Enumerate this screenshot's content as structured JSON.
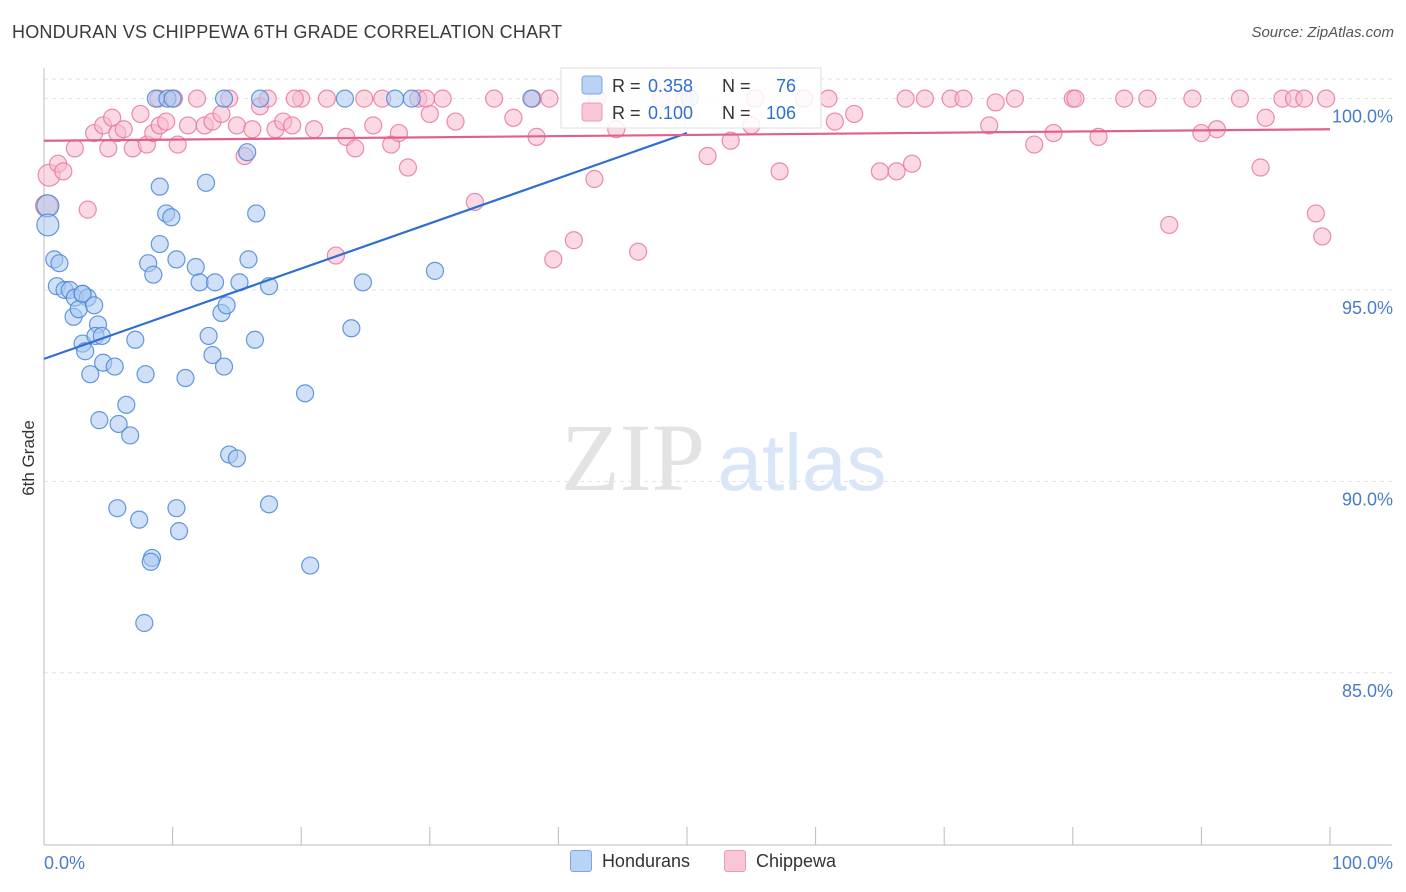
{
  "title": "HONDURAN VS CHIPPEWA 6TH GRADE CORRELATION CHART",
  "source": "Source: ZipAtlas.com",
  "watermark": {
    "zip": "ZIP",
    "atlas": "atlas"
  },
  "colors": {
    "blue": "#4a86d8",
    "blue_fill": "#a9c8f0",
    "blue_line": "#2f6fd0",
    "pink": "#e9789e",
    "pink_fill": "#f7b9cd",
    "pink_line": "#e0608c",
    "axis_label": "#4a7cc9"
  },
  "stats": [
    {
      "r_label": "R =",
      "r_value": "0.358",
      "n_label": "N =",
      "n_value": "76"
    },
    {
      "r_label": "R =",
      "r_value": "0.100",
      "n_label": "N =",
      "n_value": "106"
    }
  ],
  "legend": [
    {
      "label": "Hondurans"
    },
    {
      "label": "Chippewa"
    }
  ],
  "chart_data": {
    "type": "scatter",
    "title": "HONDURAN VS CHIPPEWA 6TH GRADE CORRELATION CHART",
    "xlabel": "",
    "ylabel": "6th Grade",
    "xlim": [
      0,
      100
    ],
    "ylim": [
      80.5,
      100.8
    ],
    "x_tick_labels": [
      "0.0%",
      "100.0%"
    ],
    "y_ticks": [
      85,
      90,
      95,
      100
    ],
    "y_tick_labels": [
      "85.0%",
      "90.0%",
      "95.0%",
      "100.0%"
    ],
    "grid": true,
    "legend_position": "bottom",
    "series": [
      {
        "name": "Hondurans",
        "r": 0.358,
        "n": 76,
        "trend": [
          [
            0,
            93.2
          ],
          [
            50,
            99.1
          ]
        ],
        "points": [
          [
            0.3,
            97.2
          ],
          [
            0.3,
            96.7
          ],
          [
            0.8,
            95.8
          ],
          [
            1.2,
            95.7
          ],
          [
            1.0,
            95.1
          ],
          [
            1.6,
            95.0
          ],
          [
            2.0,
            95.0
          ],
          [
            2.4,
            94.8
          ],
          [
            3.0,
            94.9
          ],
          [
            3.4,
            94.8
          ],
          [
            2.3,
            94.3
          ],
          [
            2.7,
            94.5
          ],
          [
            3.0,
            94.9
          ],
          [
            3.9,
            94.6
          ],
          [
            4.2,
            94.1
          ],
          [
            3.0,
            93.6
          ],
          [
            4.0,
            93.8
          ],
          [
            4.5,
            93.8
          ],
          [
            3.2,
            93.4
          ],
          [
            4.6,
            93.1
          ],
          [
            5.5,
            93.0
          ],
          [
            3.6,
            92.8
          ],
          [
            7.1,
            93.7
          ],
          [
            7.9,
            92.8
          ],
          [
            6.4,
            92.0
          ],
          [
            4.3,
            91.6
          ],
          [
            5.8,
            91.5
          ],
          [
            6.7,
            91.2
          ],
          [
            5.7,
            89.3
          ],
          [
            7.4,
            89.0
          ],
          [
            8.4,
            88.0
          ],
          [
            8.3,
            87.9
          ],
          [
            7.8,
            86.3
          ],
          [
            10.3,
            89.3
          ],
          [
            10.5,
            88.7
          ],
          [
            11.0,
            92.7
          ],
          [
            8.1,
            95.7
          ],
          [
            8.5,
            95.4
          ],
          [
            9.0,
            96.2
          ],
          [
            9.0,
            97.7
          ],
          [
            9.5,
            97.0
          ],
          [
            9.9,
            96.9
          ],
          [
            10.3,
            95.8
          ],
          [
            11.8,
            95.6
          ],
          [
            12.1,
            95.2
          ],
          [
            12.8,
            93.8
          ],
          [
            13.1,
            93.3
          ],
          [
            13.3,
            95.2
          ],
          [
            13.8,
            94.4
          ],
          [
            14.2,
            94.6
          ],
          [
            14.0,
            93.0
          ],
          [
            14.4,
            90.7
          ],
          [
            15.0,
            90.6
          ],
          [
            15.2,
            95.2
          ],
          [
            15.9,
            95.8
          ],
          [
            16.5,
            97.0
          ],
          [
            16.4,
            93.7
          ],
          [
            17.5,
            95.1
          ],
          [
            17.5,
            89.4
          ],
          [
            15.8,
            98.6
          ],
          [
            20.7,
            87.8
          ],
          [
            20.3,
            92.3
          ],
          [
            23.9,
            94.0
          ],
          [
            24.8,
            95.2
          ],
          [
            30.4,
            95.5
          ],
          [
            12.6,
            97.8
          ],
          [
            8.7,
            100.0
          ],
          [
            9.6,
            100.0
          ],
          [
            10.0,
            100.0
          ],
          [
            14.0,
            100.0
          ],
          [
            16.8,
            100.0
          ],
          [
            23.4,
            100.0
          ],
          [
            27.3,
            100.0
          ],
          [
            28.6,
            100.0
          ],
          [
            37.9,
            100.0
          ],
          [
            50.2,
            100.0
          ]
        ]
      },
      {
        "name": "Chippewa",
        "r": 0.1,
        "n": 106,
        "trend": [
          [
            0,
            98.9
          ],
          [
            100,
            99.2
          ]
        ],
        "points": [
          [
            0.2,
            97.2
          ],
          [
            0.4,
            98.0
          ],
          [
            1.1,
            98.3
          ],
          [
            1.5,
            98.1
          ],
          [
            2.4,
            98.7
          ],
          [
            3.4,
            97.1
          ],
          [
            3.9,
            99.1
          ],
          [
            4.6,
            99.3
          ],
          [
            5.0,
            98.7
          ],
          [
            5.3,
            99.5
          ],
          [
            5.7,
            99.1
          ],
          [
            6.2,
            99.2
          ],
          [
            6.9,
            98.7
          ],
          [
            7.5,
            99.6
          ],
          [
            8.0,
            98.8
          ],
          [
            8.5,
            99.1
          ],
          [
            9.0,
            99.3
          ],
          [
            9.5,
            99.4
          ],
          [
            10.1,
            100.0
          ],
          [
            10.4,
            98.8
          ],
          [
            11.2,
            99.3
          ],
          [
            11.9,
            100.0
          ],
          [
            12.5,
            99.3
          ],
          [
            13.1,
            99.4
          ],
          [
            13.8,
            99.6
          ],
          [
            14.4,
            100.0
          ],
          [
            15.0,
            99.3
          ],
          [
            15.6,
            98.5
          ],
          [
            16.2,
            99.2
          ],
          [
            16.8,
            99.8
          ],
          [
            17.4,
            100.0
          ],
          [
            18.0,
            99.2
          ],
          [
            18.6,
            99.4
          ],
          [
            19.3,
            99.3
          ],
          [
            20.0,
            100.0
          ],
          [
            21.0,
            99.2
          ],
          [
            22.0,
            100.0
          ],
          [
            22.7,
            95.9
          ],
          [
            23.5,
            99.0
          ],
          [
            24.2,
            98.7
          ],
          [
            24.9,
            100.0
          ],
          [
            25.6,
            99.3
          ],
          [
            26.3,
            100.0
          ],
          [
            27.0,
            98.8
          ],
          [
            27.6,
            99.1
          ],
          [
            28.3,
            98.2
          ],
          [
            29.1,
            100.0
          ],
          [
            30.0,
            99.6
          ],
          [
            31.0,
            100.0
          ],
          [
            32.0,
            99.4
          ],
          [
            33.5,
            97.3
          ],
          [
            35.0,
            100.0
          ],
          [
            36.5,
            99.5
          ],
          [
            38.0,
            100.0
          ],
          [
            39.6,
            95.8
          ],
          [
            41.2,
            96.3
          ],
          [
            42.8,
            97.9
          ],
          [
            44.5,
            99.2
          ],
          [
            46.2,
            96.0
          ],
          [
            48.0,
            100.0
          ],
          [
            49.8,
            100.0
          ],
          [
            51.6,
            98.5
          ],
          [
            53.4,
            98.9
          ],
          [
            55.3,
            100.0
          ],
          [
            57.2,
            98.1
          ],
          [
            59.1,
            100.0
          ],
          [
            61.0,
            100.0
          ],
          [
            63.0,
            99.6
          ],
          [
            65.0,
            98.1
          ],
          [
            66.3,
            98.1
          ],
          [
            67.5,
            98.3
          ],
          [
            68.5,
            100.0
          ],
          [
            70.5,
            100.0
          ],
          [
            71.5,
            100.0
          ],
          [
            73.5,
            99.3
          ],
          [
            75.5,
            100.0
          ],
          [
            77.0,
            98.8
          ],
          [
            78.5,
            99.1
          ],
          [
            80.0,
            100.0
          ],
          [
            82.0,
            99.0
          ],
          [
            84.0,
            100.0
          ],
          [
            85.8,
            100.0
          ],
          [
            87.5,
            96.7
          ],
          [
            89.3,
            100.0
          ],
          [
            91.2,
            99.2
          ],
          [
            93.0,
            100.0
          ],
          [
            94.6,
            98.2
          ],
          [
            96.3,
            100.0
          ],
          [
            97.2,
            100.0
          ],
          [
            98.0,
            100.0
          ],
          [
            98.9,
            97.0
          ],
          [
            99.4,
            96.4
          ],
          [
            99.7,
            100.0
          ],
          [
            8.9,
            100.0
          ],
          [
            19.5,
            100.0
          ],
          [
            29.7,
            100.0
          ],
          [
            39.3,
            100.0
          ],
          [
            43.0,
            100.0
          ],
          [
            55.0,
            99.3
          ],
          [
            67.0,
            100.0
          ],
          [
            80.2,
            100.0
          ],
          [
            90.0,
            99.1
          ],
          [
            95.0,
            99.5
          ],
          [
            38.3,
            99.0
          ],
          [
            61.5,
            99.4
          ],
          [
            74.0,
            99.9
          ]
        ]
      }
    ]
  }
}
